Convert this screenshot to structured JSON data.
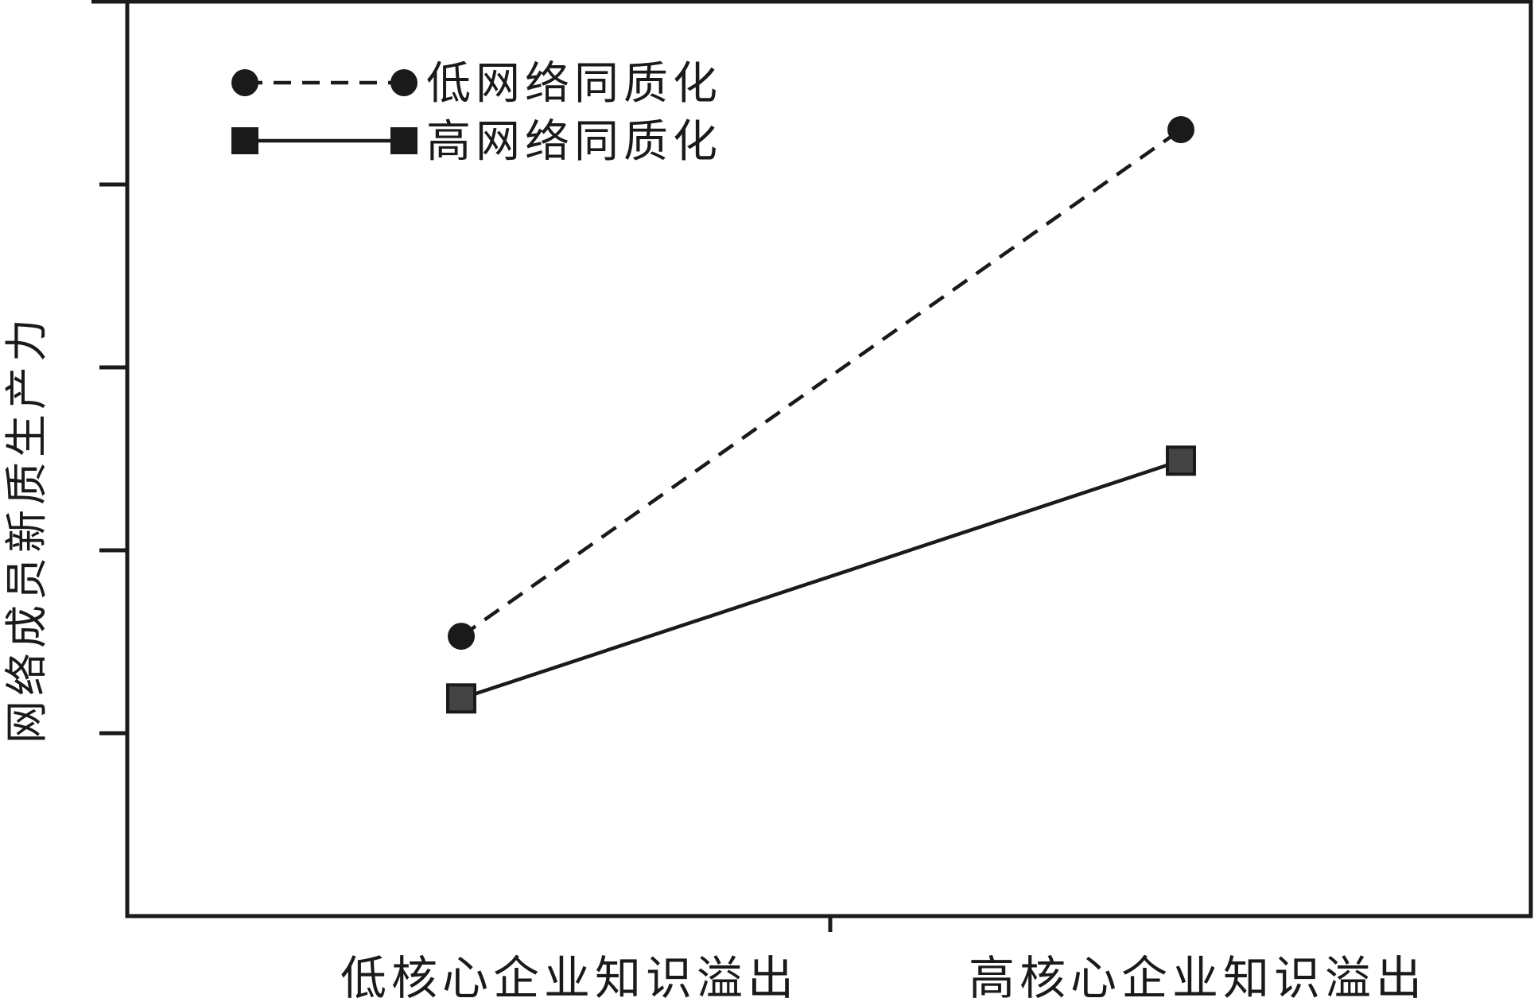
{
  "chart_data": {
    "type": "line",
    "title": "",
    "xlabel": "",
    "ylabel": "网络成员新质生产力",
    "categories": [
      "低核心企业知识溢出",
      "高核心企业知识溢出"
    ],
    "ylim": [
      0,
      5
    ],
    "yticks": [
      1,
      2,
      3,
      4
    ],
    "grid": false,
    "legend_position": "top-left",
    "series": [
      {
        "name": "低网络同质化",
        "values": [
          1.53,
          4.3
        ],
        "marker": "circle",
        "line_style": "dashed",
        "color": "#1a1a1a"
      },
      {
        "name": "高网络同质化",
        "values": [
          1.19,
          2.49
        ],
        "marker": "square",
        "line_style": "solid",
        "color": "#1a1a1a"
      }
    ]
  }
}
